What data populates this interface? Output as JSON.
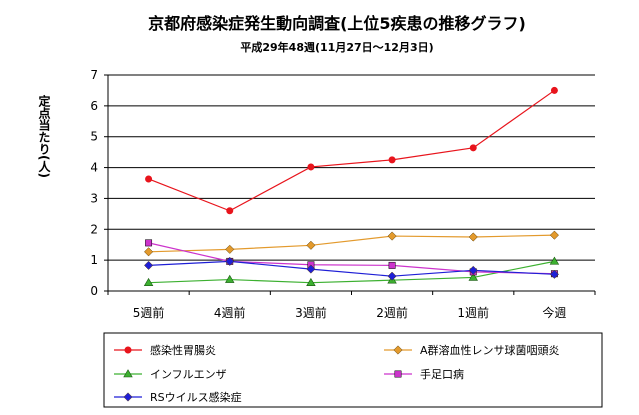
{
  "chart_data": {
    "type": "line",
    "title": "京都府感染症発生動向調査(上位5疾患の推移グラフ)",
    "subtitle": "平成29年48週(11月27日〜12月3日)",
    "ylabel": "定点当たり(人)",
    "xlabel": "",
    "categories": [
      "5週前",
      "4週前",
      "3週前",
      "2週前",
      "1週前",
      "今週"
    ],
    "ylim": [
      0,
      7
    ],
    "yticks": [
      "0",
      "1",
      "2",
      "3",
      "4",
      "5",
      "6",
      "7"
    ],
    "grid": true,
    "legend_position": "bottom",
    "series": [
      {
        "name": "感染性胃腸炎",
        "color": "#e8141c",
        "marker": "circle",
        "values": [
          3.63,
          2.6,
          4.02,
          4.25,
          4.64,
          6.5
        ]
      },
      {
        "name": "A群溶血性レンサ球菌咽頭炎",
        "color": "#e39a2d",
        "marker": "diamond",
        "values": [
          1.27,
          1.35,
          1.48,
          1.78,
          1.75,
          1.81
        ]
      },
      {
        "name": "インフルエンザ",
        "color": "#3cb030",
        "marker": "triangle",
        "values": [
          0.27,
          0.37,
          0.27,
          0.35,
          0.44,
          0.96
        ]
      },
      {
        "name": "手足口病",
        "color": "#cc33cc",
        "marker": "square",
        "values": [
          1.56,
          0.96,
          0.85,
          0.83,
          0.62,
          0.56
        ]
      },
      {
        "name": "RSウイルス感染症",
        "color": "#1f1fd6",
        "marker": "diamond",
        "values": [
          0.83,
          0.96,
          0.71,
          0.48,
          0.67,
          0.54
        ]
      }
    ]
  }
}
